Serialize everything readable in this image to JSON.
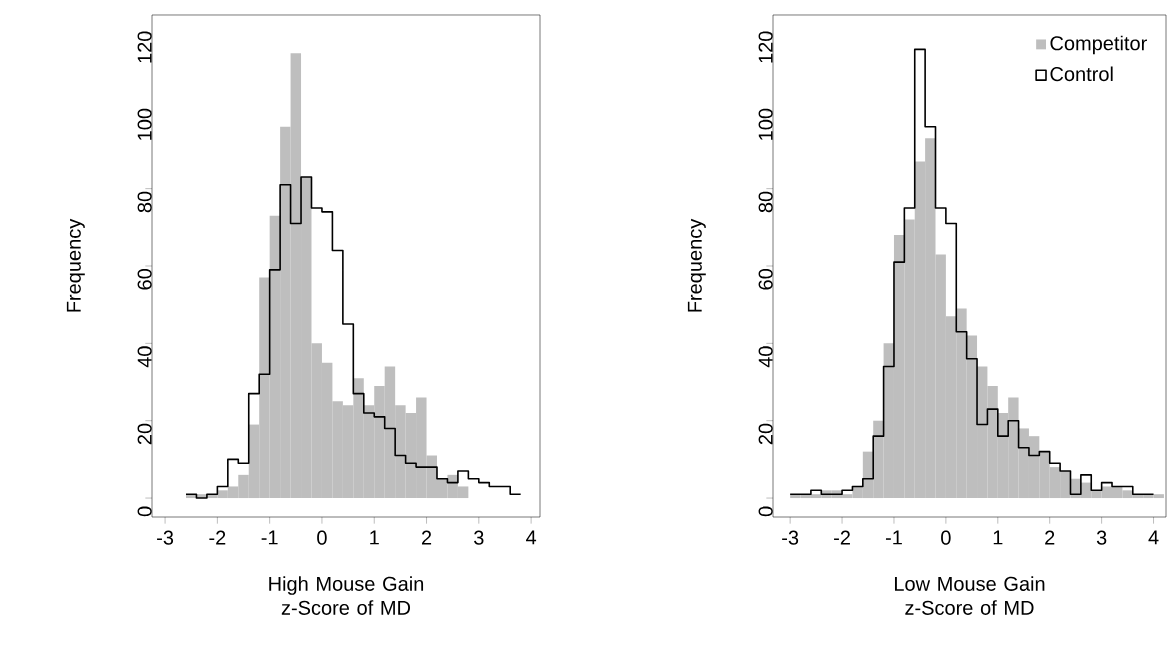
{
  "chart_data": [
    {
      "type": "histogram",
      "xlabel": "High Mouse Gain z-Score of MD",
      "ylabel": "Frequency",
      "xlim": [
        -3.25,
        4.17
      ],
      "ylim": [
        -4.9,
        124.9
      ],
      "xticks": [
        {
          "value": -3,
          "label": "-3"
        },
        {
          "value": -2,
          "label": "-2"
        },
        {
          "value": -1,
          "label": "-1"
        },
        {
          "value": 0,
          "label": "0"
        },
        {
          "value": 1,
          "label": "1"
        },
        {
          "value": 2,
          "label": "2"
        },
        {
          "value": 3,
          "label": "3"
        },
        {
          "value": 4,
          "label": "4"
        }
      ],
      "yticks": [
        {
          "value": 0,
          "label": "0"
        },
        {
          "value": 20,
          "label": "20"
        },
        {
          "value": 40,
          "label": "40"
        },
        {
          "value": 60,
          "label": "60"
        },
        {
          "value": 80,
          "label": "80"
        },
        {
          "value": 100,
          "label": "100"
        },
        {
          "value": 120,
          "label": "120"
        }
      ],
      "legend": false,
      "bins": [
        -2.6,
        -2.4,
        -2.2,
        -2.0,
        -1.8,
        -1.6,
        -1.4,
        -1.2,
        -1.0,
        -0.8,
        -0.6,
        -0.4,
        -0.2,
        0,
        0.2,
        0.4,
        0.6,
        0.8,
        1.0,
        1.2,
        1.4,
        1.6,
        1.8,
        2.0,
        2.2,
        2.4,
        2.6,
        2.8,
        3.0,
        3.2,
        3.4,
        3.6,
        3.8
      ],
      "series": [
        {
          "type": "histogram",
          "color": "#bebebe",
          "values": [
            1,
            1,
            1,
            2,
            3,
            6,
            19,
            57,
            73,
            96,
            115,
            83,
            40,
            35,
            25,
            24,
            31,
            24,
            29,
            34,
            24,
            22,
            26,
            11,
            5,
            6,
            3,
            null,
            null,
            null,
            null,
            null
          ]
        },
        {
          "type": "step",
          "color": "#000000",
          "x": [
            -2.6,
            -2.4,
            -2.2,
            -2.0,
            -1.8,
            -1.6,
            -1.4,
            -1.2,
            -1.0,
            -0.8,
            -0.6,
            -0.4,
            -0.2,
            0,
            0.2,
            0.4,
            0.6,
            0.8,
            1.0,
            1.2,
            1.4,
            1.6,
            1.8,
            2.0,
            2.2,
            2.4,
            2.6,
            2.8,
            3.0,
            3.2,
            3.4,
            3.6,
            3.8
          ],
          "values": [
            1,
            0,
            1,
            3,
            10,
            9,
            27,
            32,
            59,
            81,
            71,
            83,
            75,
            74,
            64,
            45,
            27,
            22,
            21,
            18,
            11,
            9,
            8,
            8,
            5,
            4,
            7,
            5,
            4,
            3,
            3,
            1,
            1
          ]
        }
      ]
    },
    {
      "type": "histogram",
      "xlabel": "Low Mouse Gain z-Score of MD",
      "ylabel": "Frequency",
      "xlim": [
        -3.33,
        4.24
      ],
      "ylim": [
        -4.9,
        124.9
      ],
      "xticks": [
        {
          "value": -3,
          "label": "-3"
        },
        {
          "value": -2,
          "label": "-2"
        },
        {
          "value": -1,
          "label": "-1"
        },
        {
          "value": 0,
          "label": "0"
        },
        {
          "value": 1,
          "label": "1"
        },
        {
          "value": 2,
          "label": "2"
        },
        {
          "value": 3,
          "label": "3"
        },
        {
          "value": 4,
          "label": "4"
        }
      ],
      "yticks": [
        {
          "value": 0,
          "label": "0"
        },
        {
          "value": 20,
          "label": "20"
        },
        {
          "value": 40,
          "label": "40"
        },
        {
          "value": 60,
          "label": "60"
        },
        {
          "value": 80,
          "label": "80"
        },
        {
          "value": 100,
          "label": "100"
        },
        {
          "value": 120,
          "label": "120"
        }
      ],
      "legend": "top right",
      "bins": [
        -3.2,
        -3.0,
        -2.8,
        -2.6,
        -2.4,
        -2.2,
        -2.0,
        -1.8,
        -1.6,
        -1.4,
        -1.2,
        -1.0,
        -0.8,
        -0.6,
        -0.4,
        -0.2,
        0,
        0.2,
        0.4,
        0.6,
        0.8,
        1.0,
        1.2,
        1.4,
        1.6,
        1.8,
        2.0,
        2.2,
        2.4,
        2.6,
        2.8,
        3.0,
        3.2,
        3.4,
        3.6,
        3.8,
        4.0,
        4.2
      ],
      "series": [
        {
          "name": "Competitor",
          "type": "histogram",
          "color": "#bebebe",
          "values": [
            0,
            1,
            1,
            1,
            2,
            2,
            1,
            3,
            12,
            20,
            40,
            68,
            72,
            87,
            93,
            63,
            47,
            49,
            42,
            34,
            29,
            22,
            26,
            18,
            16,
            12,
            8,
            7,
            5,
            4,
            2,
            3,
            3,
            2,
            1,
            1,
            1
          ]
        },
        {
          "name": "Control",
          "type": "step",
          "color": "#000000",
          "x": [
            -3.0,
            -2.8,
            -2.6,
            -2.4,
            -2.2,
            -2.0,
            -1.8,
            -1.6,
            -1.4,
            -1.2,
            -1.0,
            -0.8,
            -0.6,
            -0.4,
            -0.2,
            0,
            0.2,
            0.4,
            0.6,
            0.8,
            1.0,
            1.2,
            1.4,
            1.6,
            1.8,
            2.0,
            2.2,
            2.4,
            2.6,
            2.8,
            3.0,
            3.2,
            3.4,
            3.6,
            3.8,
            4.0
          ],
          "values": [
            1,
            1,
            2,
            1,
            1,
            2,
            3,
            5,
            16,
            34,
            61,
            75,
            116,
            96,
            75,
            71,
            43,
            36,
            19,
            23,
            16,
            20,
            13,
            11,
            12,
            9,
            7,
            1,
            6,
            2,
            4,
            3,
            3,
            1,
            1,
            1
          ]
        }
      ]
    }
  ]
}
